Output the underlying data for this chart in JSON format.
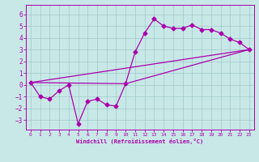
{
  "background_color": "#c8e8e8",
  "grid_color": "#a0c8c8",
  "line_color": "#aa00aa",
  "xlabel": "Windchill (Refroidissement éolien,°C)",
  "xlim": [
    -0.5,
    23.5
  ],
  "ylim": [
    -3.8,
    6.8
  ],
  "yticks": [
    -3,
    -2,
    -1,
    0,
    1,
    2,
    3,
    4,
    5,
    6
  ],
  "xticks": [
    0,
    1,
    2,
    3,
    4,
    5,
    6,
    7,
    8,
    9,
    10,
    11,
    12,
    13,
    14,
    15,
    16,
    17,
    18,
    19,
    20,
    21,
    22,
    23
  ],
  "line1_x": [
    0,
    1,
    2,
    3,
    4,
    5,
    6,
    7,
    8,
    9,
    10,
    11,
    12,
    13,
    14,
    15,
    16,
    17,
    18,
    19,
    20,
    21,
    22,
    23
  ],
  "line1_y": [
    0.2,
    -1.0,
    -1.2,
    -0.5,
    0.0,
    -3.3,
    -1.4,
    -1.2,
    -1.7,
    -1.8,
    0.1,
    2.8,
    4.4,
    5.6,
    5.0,
    4.8,
    4.8,
    5.1,
    4.7,
    4.7,
    4.4,
    3.9,
    3.6,
    3.0
  ],
  "line2_x": [
    0,
    23
  ],
  "line2_y": [
    0.2,
    3.0
  ],
  "line3_x": [
    0,
    10,
    23
  ],
  "line3_y": [
    0.2,
    0.1,
    3.0
  ],
  "marker": "D",
  "marker_size": 2.5,
  "linewidth": 0.9
}
